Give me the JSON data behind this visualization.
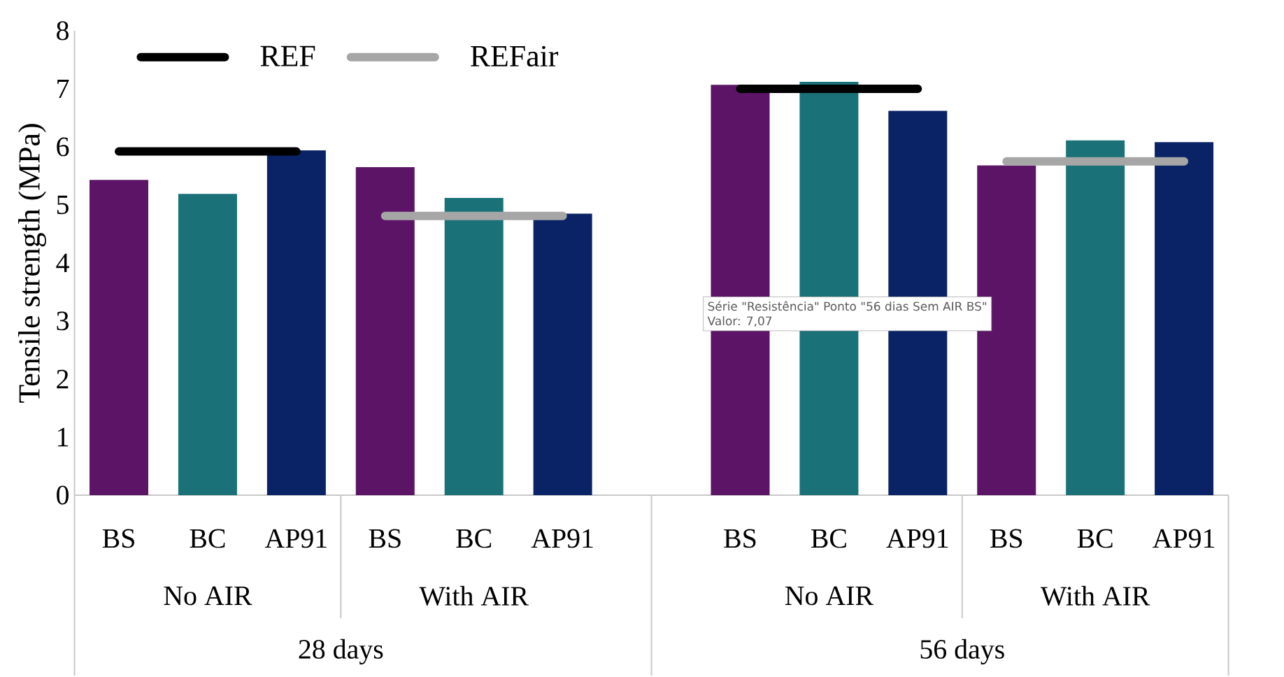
{
  "chart_data": {
    "type": "bar",
    "ylabel": "Tensile strength (MPa)",
    "categories": [
      "BS",
      "BC",
      "AP91",
      "BS",
      "BC",
      "AP91",
      null,
      "BS",
      "BC",
      "AP91",
      "BS",
      "BC",
      "AP91"
    ],
    "series": [
      {
        "values": [
          5.43,
          5.19,
          5.94,
          5.65,
          5.12,
          4.85,
          null,
          7.07,
          7.12,
          6.62,
          5.68,
          6.11,
          6.08
        ],
        "colors": [
          "#5c1466",
          "#1a7278",
          "#0a2366",
          "#5c1466",
          "#1a7278",
          "#0a2366",
          "#ffffff",
          "#5c1466",
          "#1a7278",
          "#0a2366",
          "#5c1466",
          "#1a7278",
          "#0a2366"
        ]
      },
      {
        "type": "line",
        "name": "REF",
        "color": "#000000",
        "values": [
          5.92,
          5.92,
          5.92,
          null,
          null,
          null,
          null,
          7.0,
          7.0,
          7.0,
          null,
          null,
          null
        ]
      },
      {
        "type": "line",
        "name": "REFair",
        "color": "#a6a6a6",
        "values": [
          null,
          null,
          null,
          4.81,
          4.81,
          4.81,
          null,
          null,
          null,
          null,
          5.75,
          5.75,
          5.75
        ]
      }
    ],
    "ylim": [
      0,
      8
    ],
    "yticks": [
      0,
      1,
      2,
      3,
      4,
      5,
      6,
      7,
      8
    ],
    "legend": "top left",
    "grid": false,
    "annotations": [
      "No AIR",
      "With AIR",
      "No AIR",
      "With AIR",
      "28 days",
      "56 days",
      "Série \"Resistência\" Ponto \"56 dias Sem AIR BS\"",
      "Valor: 7,07"
    ]
  }
}
